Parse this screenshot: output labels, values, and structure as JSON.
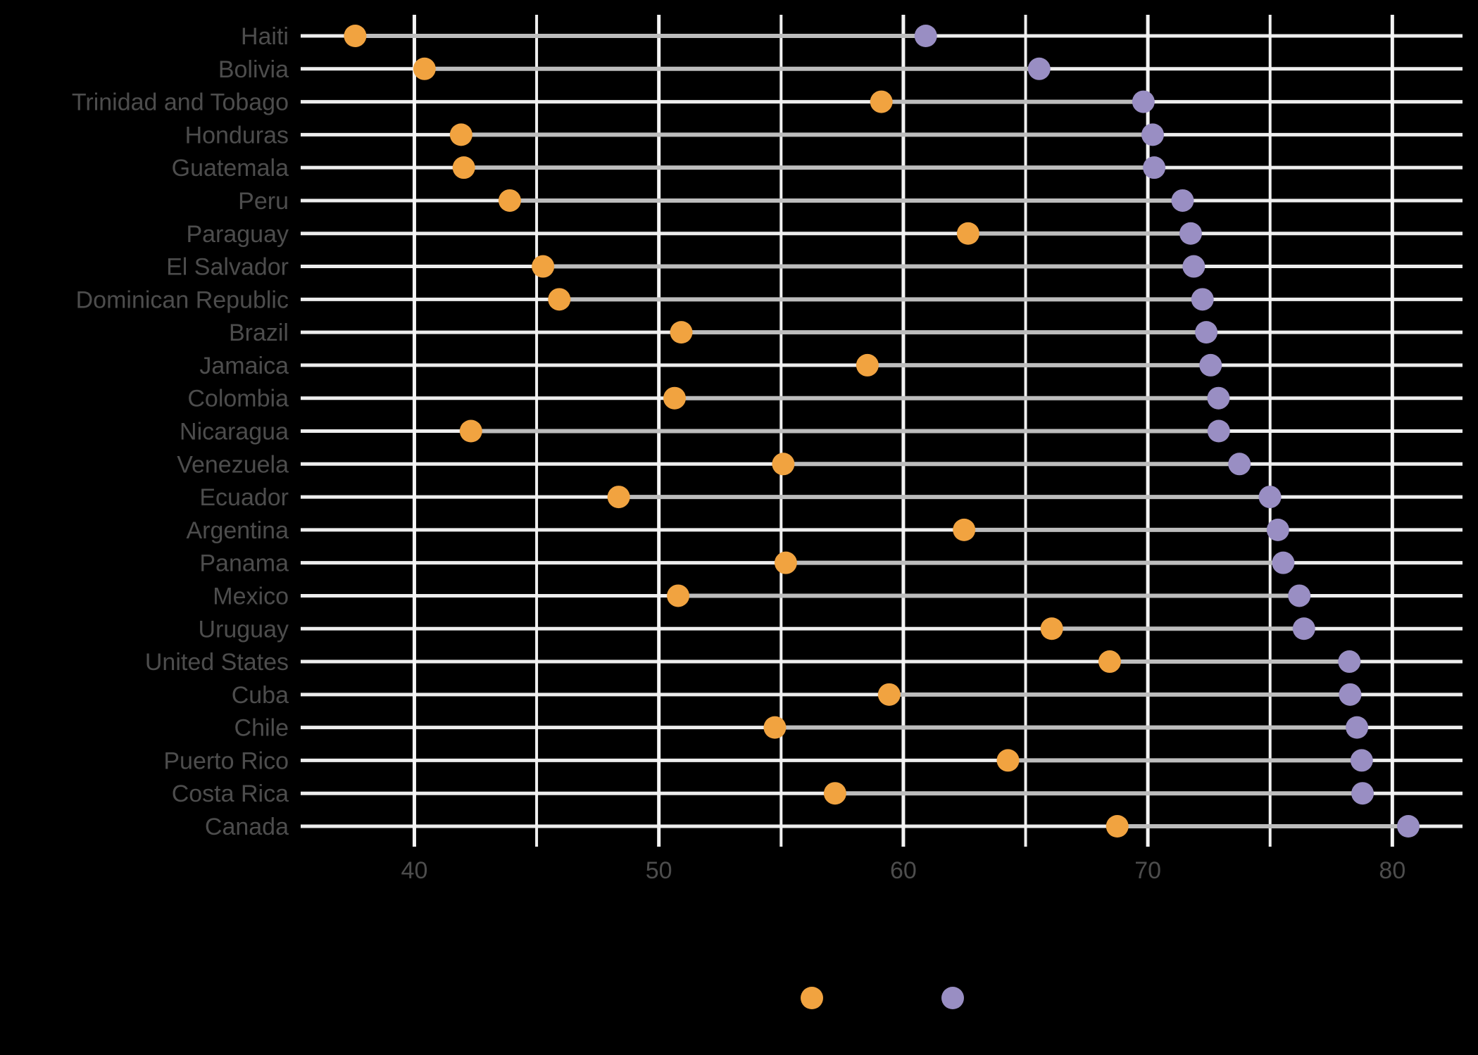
{
  "background_color": "#000000",
  "chart_data": {
    "type": "dumbbell",
    "orientation": "horizontal",
    "title": "",
    "xlabel": "",
    "ylabel": "",
    "categories": [
      "Haiti",
      "Bolivia",
      "Trinidad and Tobago",
      "Honduras",
      "Guatemala",
      "Peru",
      "Paraguay",
      "El Salvador",
      "Dominican Republic",
      "Brazil",
      "Jamaica",
      "Colombia",
      "Nicaragua",
      "Venezuela",
      "Ecuador",
      "Argentina",
      "Panama",
      "Mexico",
      "Uruguay",
      "United States",
      "Cuba",
      "Chile",
      "Puerto Rico",
      "Costa Rica",
      "Canada"
    ],
    "series": [
      {
        "name": "series-orange",
        "legend_label": "",
        "color": "#F1A340",
        "values": [
          37.579,
          40.414,
          59.1,
          41.912,
          42.023,
          43.902,
          62.649,
          45.262,
          45.928,
          50.917,
          58.53,
          50.643,
          42.314,
          55.089,
          48.357,
          62.485,
          55.191,
          50.789,
          66.071,
          68.44,
          59.421,
          54.745,
          64.28,
          57.206,
          68.75
        ]
      },
      {
        "name": "series-purple",
        "legend_label": "",
        "color": "#998EC3",
        "values": [
          60.916,
          65.554,
          69.819,
          70.198,
          70.259,
          71.421,
          71.752,
          71.878,
          72.235,
          72.39,
          72.567,
          72.889,
          72.899,
          73.747,
          74.994,
          75.32,
          75.537,
          76.195,
          76.384,
          78.242,
          78.273,
          78.553,
          78.746,
          78.782,
          80.653
        ]
      }
    ],
    "connector_color": "#BDBDBD",
    "x_ticks": [
      40,
      50,
      60,
      70,
      80
    ],
    "x_minor_ticks": [
      45,
      55,
      65,
      75
    ],
    "xlim": [
      35.35,
      82.87
    ],
    "grid": {
      "horizontal_row_lines": true,
      "vertical_lines": true,
      "row_line_color": "#EDEDED",
      "major_line_color": "#F4F4F4",
      "minor_line_color": "#F0F0F0"
    },
    "axis_text_color": "#4D4D4D",
    "legend": {
      "position": "bottom",
      "items": [
        {
          "label": "",
          "color": "#F1A340"
        },
        {
          "label": "",
          "color": "#998EC3"
        }
      ]
    }
  }
}
